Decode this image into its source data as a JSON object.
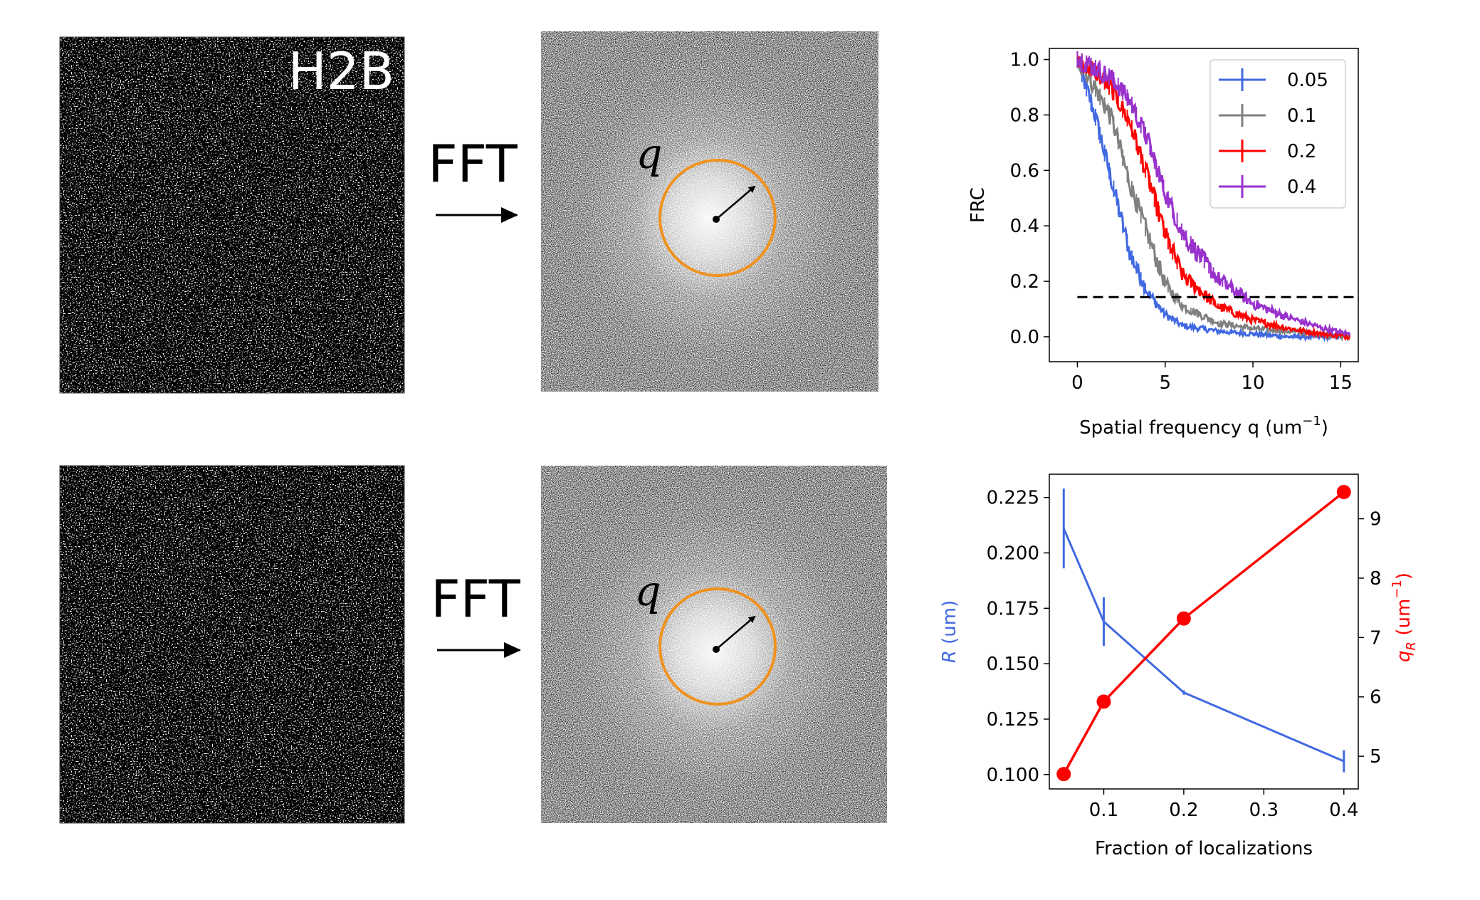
{
  "panels": {
    "label_h2b": "H2B",
    "fft_label": "FFT",
    "q_label": "q"
  },
  "colors": {
    "circle": "#f0921e",
    "blue": "#4169e1",
    "gray": "#808080",
    "red": "#ff0000",
    "purple": "#9932cc"
  },
  "chart_data": [
    {
      "type": "line",
      "ylabel": "FRC",
      "xlabel_prefix": "Spatial frequency q (um",
      "xlabel_sup": "−1",
      "xlabel_suffix": ")",
      "xlim": [
        -1.6,
        16
      ],
      "ylim": [
        -0.09,
        1.04
      ],
      "xticks": [
        0,
        5,
        10,
        15
      ],
      "xtick_labels": [
        "0",
        "5",
        "10",
        "15"
      ],
      "yticks": [
        0.0,
        0.2,
        0.4,
        0.6,
        0.8,
        1.0
      ],
      "ytick_labels": [
        "0.0",
        "0.2",
        "0.4",
        "0.6",
        "0.8",
        "1.0"
      ],
      "threshold": 0.143,
      "threshold_style": "dashed",
      "legend_position": "top-right",
      "series": [
        {
          "name": "0.05",
          "color": "#4169e1",
          "x": [
            0,
            1,
            2,
            3,
            4,
            5,
            6,
            8,
            10,
            12,
            14,
            15.5
          ],
          "y": [
            1.0,
            0.8,
            0.55,
            0.3,
            0.16,
            0.08,
            0.04,
            0.02,
            0.01,
            0.0,
            0.0,
            0.0
          ]
        },
        {
          "name": "0.1",
          "color": "#808080",
          "x": [
            0,
            1,
            2,
            3,
            4,
            5,
            6,
            8,
            10,
            12,
            14,
            15.5
          ],
          "y": [
            1.0,
            0.9,
            0.78,
            0.55,
            0.37,
            0.19,
            0.11,
            0.05,
            0.03,
            0.02,
            0.01,
            0.0
          ]
        },
        {
          "name": "0.2",
          "color": "#ff0000",
          "x": [
            0,
            1,
            2,
            3,
            4,
            5,
            6,
            8,
            10,
            12,
            14,
            15.5
          ],
          "y": [
            1.0,
            0.96,
            0.89,
            0.77,
            0.58,
            0.37,
            0.22,
            0.11,
            0.06,
            0.03,
            0.01,
            0.0
          ]
        },
        {
          "name": "0.4",
          "color": "#9932cc",
          "x": [
            0,
            1,
            2,
            3,
            4,
            5,
            6,
            8,
            10,
            12,
            14,
            15.5
          ],
          "y": [
            1.0,
            0.97,
            0.93,
            0.85,
            0.71,
            0.52,
            0.37,
            0.21,
            0.12,
            0.07,
            0.03,
            0.01
          ]
        }
      ]
    },
    {
      "type": "line",
      "xlabel": "Fraction of localizations",
      "ylabel_left_var": "R",
      "ylabel_left_unit": " (um)",
      "ylabel_right_var": "q",
      "ylabel_right_sub": "R",
      "ylabel_right_unit_prefix": " (um",
      "ylabel_right_unit_sup": "−1",
      "ylabel_right_unit_suffix": ")",
      "x": [
        0.05,
        0.1,
        0.2,
        0.4
      ],
      "xlim": [
        0.032,
        0.418
      ],
      "xticks": [
        0.1,
        0.2,
        0.3,
        0.4
      ],
      "xtick_labels": [
        "0.1",
        "0.2",
        "0.3",
        "0.4"
      ],
      "ylim_left": [
        0.0935,
        0.2355
      ],
      "yticks_left": [
        0.1,
        0.125,
        0.15,
        0.175,
        0.2,
        0.225
      ],
      "ytick_labels_left": [
        "0.100",
        "0.125",
        "0.150",
        "0.175",
        "0.200",
        "0.225"
      ],
      "ylim_right": [
        4.45,
        9.75
      ],
      "yticks_right": [
        5,
        6,
        7,
        8,
        9
      ],
      "ytick_labels_right": [
        "5",
        "6",
        "7",
        "8",
        "9"
      ],
      "series": [
        {
          "name": "R",
          "axis": "left",
          "color": "#4169e1",
          "values": [
            0.211,
            0.169,
            0.137,
            0.106
          ],
          "errors": [
            0.018,
            0.011,
            0.001,
            0.005
          ]
        },
        {
          "name": "qR",
          "axis": "right",
          "color": "#ff0000",
          "values": [
            4.7,
            5.92,
            7.32,
            9.45
          ],
          "marker": "circle"
        }
      ]
    }
  ]
}
